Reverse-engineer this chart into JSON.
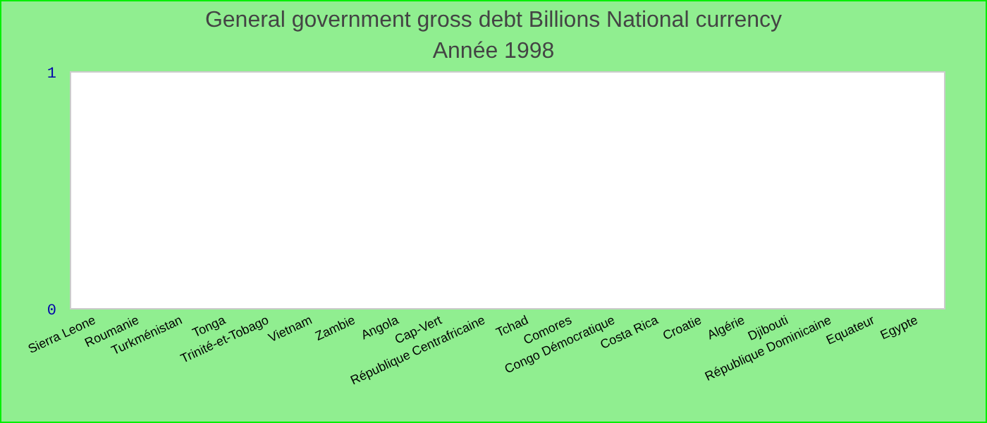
{
  "chart_data": {
    "type": "bar",
    "title": "General government gross debt Billions National currency",
    "subtitle": "Année 1998",
    "categories": [
      "Sierra Leone",
      "Roumanie",
      "Turkménistan",
      "Tonga",
      "Trinité-et-Tobago",
      "Vietnam",
      "Zambie",
      "Angola",
      "Cap-Vert",
      "République Centrafricaine",
      "Tchad",
      "Comores",
      "Congo Démocratique",
      "Costa Rica",
      "Croatie",
      "Algérie",
      "Djibouti",
      "République Dominicaine",
      "Equateur",
      "Egypte"
    ],
    "values": [
      0,
      0,
      0,
      0,
      0,
      0,
      0,
      0,
      0,
      0,
      0,
      0,
      0,
      0,
      0,
      0,
      0,
      0,
      0,
      0
    ],
    "ylim": [
      0,
      1
    ],
    "yticks": [
      0,
      1
    ]
  }
}
